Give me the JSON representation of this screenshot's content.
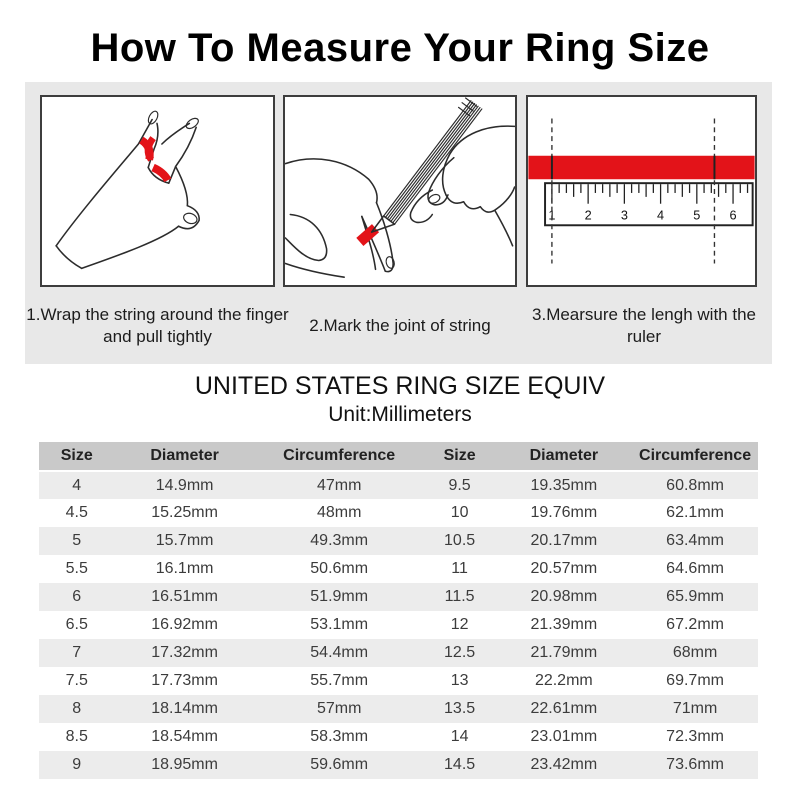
{
  "title": "How To Measure Your Ring Size",
  "steps": [
    {
      "caption": "1.Wrap the string around the finger and pull tightly"
    },
    {
      "caption": "2.Mark the joint of string"
    },
    {
      "caption": "3.Mearsure the lengh with the ruler"
    }
  ],
  "table_section": {
    "heading": "UNITED STATES RING SIZE EQUIV",
    "unit": "Unit:Millimeters",
    "columns": [
      "Size",
      "Diameter",
      "Circumference",
      "Size",
      "Diameter",
      "Circumference"
    ],
    "rows": [
      [
        "4",
        "14.9mm",
        "47mm",
        "9.5",
        "19.35mm",
        "60.8mm"
      ],
      [
        "4.5",
        "15.25mm",
        "48mm",
        "10",
        "19.76mm",
        "62.1mm"
      ],
      [
        "5",
        "15.7mm",
        "49.3mm",
        "10.5",
        "20.17mm",
        "63.4mm"
      ],
      [
        "5.5",
        "16.1mm",
        "50.6mm",
        "11",
        "20.57mm",
        "64.6mm"
      ],
      [
        "6",
        "16.51mm",
        "51.9mm",
        "11.5",
        "20.98mm",
        "65.9mm"
      ],
      [
        "6.5",
        "16.92mm",
        "53.1mm",
        "12",
        "21.39mm",
        "67.2mm"
      ],
      [
        "7",
        "17.32mm",
        "54.4mm",
        "12.5",
        "21.79mm",
        "68mm"
      ],
      [
        "7.5",
        "17.73mm",
        "55.7mm",
        "13",
        "22.2mm",
        "69.7mm"
      ],
      [
        "8",
        "18.14mm",
        "57mm",
        "13.5",
        "22.61mm",
        "71mm"
      ],
      [
        "8.5",
        "18.54mm",
        "58.3mm",
        "14",
        "23.01mm",
        "72.3mm"
      ],
      [
        "9",
        "18.95mm",
        "59.6mm",
        "14.5",
        "23.42mm",
        "73.6mm"
      ]
    ]
  },
  "ruler": {
    "numbers": [
      "1",
      "2",
      "3",
      "4",
      "5",
      "6"
    ]
  },
  "colors": {
    "accent_red": "#e31319",
    "header_bg": "#c9c9c9",
    "stripe_bg": "#ececec",
    "panel_bg": "#e8e8e8"
  }
}
